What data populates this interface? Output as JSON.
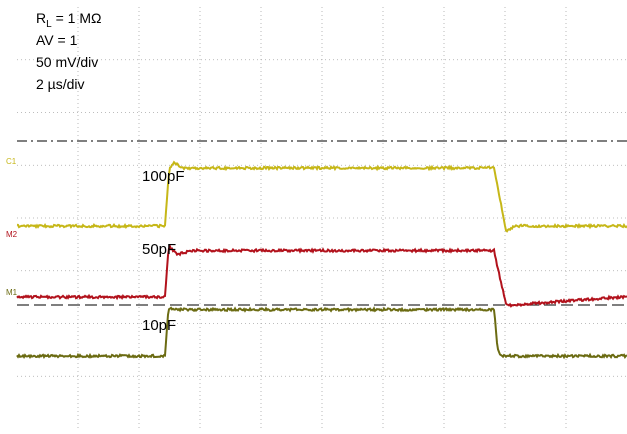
{
  "info": {
    "rl_label": "R",
    "rl_sub": "L",
    "rl_value": " = 1 MΩ",
    "av": "AV = 1",
    "vdiv": "50 mV/div",
    "tdiv": "2 µs/div"
  },
  "markers": {
    "c1": "C1",
    "m2": "M2",
    "m1": "M1"
  },
  "labels": {
    "c100": "100pF",
    "c50": "50pF",
    "c10": "10pF"
  },
  "colors": {
    "yellow": "#c6b718",
    "red": "#b2121c",
    "olive": "#6b6b12",
    "grid": "#a8a8a8",
    "ref": "#333333"
  },
  "chart_data": {
    "type": "line",
    "x_unit": "µs",
    "x_scale": "2 µs/div",
    "y_scale": "50 mV/div",
    "grid": true,
    "series": [
      {
        "name": "100pF",
        "x": [
          0,
          4.9,
          5.0,
          5.05,
          5.2,
          5.5,
          15.8,
          15.9,
          16.2,
          16.5,
          20
        ],
        "values": [
          0,
          0,
          40,
          55,
          60,
          55,
          55,
          40,
          -5,
          0,
          0
        ]
      },
      {
        "name": "50pF",
        "x": [
          0,
          4.9,
          5.0,
          5.05,
          5.3,
          5.8,
          15.8,
          15.9,
          16.2,
          20
        ],
        "values": [
          0,
          0,
          40,
          48,
          40,
          44,
          44,
          30,
          -8,
          0
        ]
      },
      {
        "name": "10pF",
        "x": [
          0,
          4.9,
          5.0,
          5.05,
          5.3,
          15.8,
          15.9,
          16.0,
          20
        ],
        "values": [
          0,
          0,
          40,
          45,
          44,
          44,
          10,
          0,
          0
        ]
      }
    ]
  }
}
